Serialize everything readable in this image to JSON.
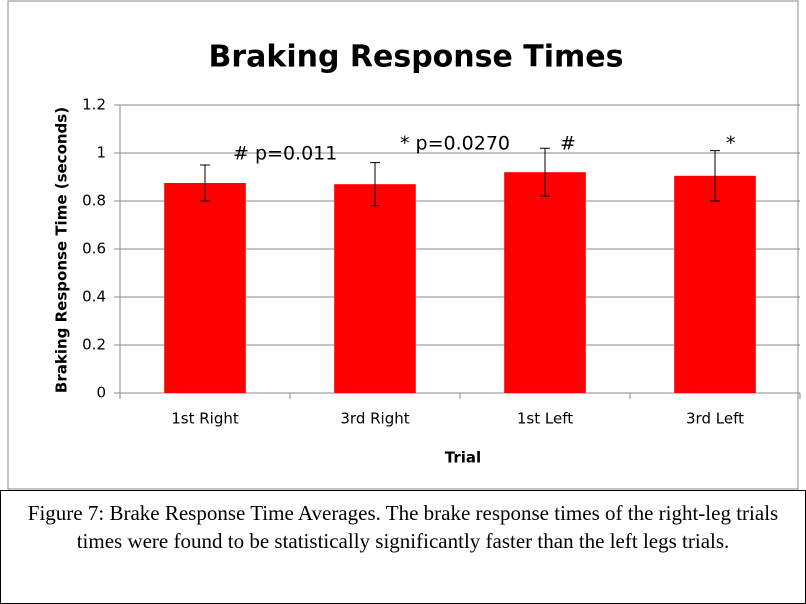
{
  "chart_data": {
    "type": "bar",
    "title": "Braking Response Times",
    "x_label": "Trial",
    "y_label": "Braking Response Time (seconds)",
    "categories": [
      "1st Right",
      "3rd Right",
      "1st Left",
      "3rd Left"
    ],
    "values": [
      0.875,
      0.87,
      0.92,
      0.905
    ],
    "errors": [
      0.075,
      0.09,
      0.1,
      0.105
    ],
    "annotations": [
      "# p=0.011",
      "* p=0.0270",
      "#",
      "*"
    ],
    "color": "#ff0000",
    "ylim": [
      0,
      1.2
    ],
    "yticks": [
      0,
      0.2,
      0.4,
      0.6,
      0.8,
      1,
      1.2
    ],
    "grid": true
  },
  "caption": "Figure 7: Brake Response Time Averages. The brake response times of the right-leg trials times were found to be statistically significantly faster than the left legs trials."
}
